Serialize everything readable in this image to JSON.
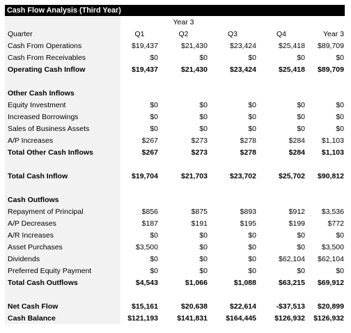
{
  "title": "Cash Flow Analysis (Third Year)",
  "year_header": "Year 3",
  "columns": [
    "Quarter",
    "Q1",
    "Q2",
    "Q3",
    "Q4",
    "Year 3"
  ],
  "rows": [
    {
      "label": "Cash From Operations",
      "values": [
        "$19,437",
        "$21,430",
        "$23,424",
        "$25,418",
        "$89,709"
      ]
    },
    {
      "label": "Cash From Receivables",
      "values": [
        "$0",
        "$0",
        "$0",
        "$0",
        "$0"
      ]
    },
    {
      "label": "Operating Cash Inflow",
      "values": [
        "$19,437",
        "$21,430",
        "$23,424",
        "$25,418",
        "$89,709"
      ]
    },
    {
      "label": "Other Cash Inflows",
      "values": [
        "",
        "",
        "",
        "",
        ""
      ]
    },
    {
      "label": "Equity Investment",
      "values": [
        "$0",
        "$0",
        "$0",
        "$0",
        "$0"
      ]
    },
    {
      "label": "Increased Borrowings",
      "values": [
        "$0",
        "$0",
        "$0",
        "$0",
        "$0"
      ]
    },
    {
      "label": "Sales of Business Assets",
      "values": [
        "$0",
        "$0",
        "$0",
        "$0",
        "$0"
      ]
    },
    {
      "label": "A/P Increases",
      "values": [
        "$267",
        "$273",
        "$278",
        "$284",
        "$1,103"
      ]
    },
    {
      "label": "Total Other Cash Inflows",
      "values": [
        "$267",
        "$273",
        "$278",
        "$284",
        "$1,103"
      ]
    },
    {
      "label": "Total Cash Inflow",
      "values": [
        "$19,704",
        "$21,703",
        "$23,702",
        "$25,702",
        "$90,812"
      ]
    },
    {
      "label": "Cash Outflows",
      "values": [
        "",
        "",
        "",
        "",
        ""
      ]
    },
    {
      "label": "Repayment of Principal",
      "values": [
        "$856",
        "$875",
        "$893",
        "$912",
        "$3,536"
      ]
    },
    {
      "label": "A/P Decreases",
      "values": [
        "$187",
        "$191",
        "$195",
        "$199",
        "$772"
      ]
    },
    {
      "label": "A/R Increases",
      "values": [
        "$0",
        "$0",
        "$0",
        "$0",
        "$0"
      ]
    },
    {
      "label": "Asset Purchases",
      "values": [
        "$3,500",
        "$0",
        "$0",
        "$0",
        "$3,500"
      ]
    },
    {
      "label": "Dividends",
      "values": [
        "$0",
        "$0",
        "$0",
        "$62,104",
        "$62,104"
      ]
    },
    {
      "label": "Preferred Equity Payment",
      "values": [
        "$0",
        "$0",
        "$0",
        "$0",
        "$0"
      ]
    },
    {
      "label": "Total Cash Outflows",
      "values": [
        "$4,543",
        "$1,066",
        "$1,088",
        "$63,215",
        "$69,912"
      ]
    },
    {
      "label": "Net Cash Flow",
      "values": [
        "$15,161",
        "$20,638",
        "$22,614",
        "-$37,513",
        "$20,899"
      ]
    },
    {
      "label": "Cash Balance",
      "values": [
        "$121,193",
        "$141,831",
        "$164,445",
        "$126,932",
        "$126,932"
      ]
    }
  ]
}
